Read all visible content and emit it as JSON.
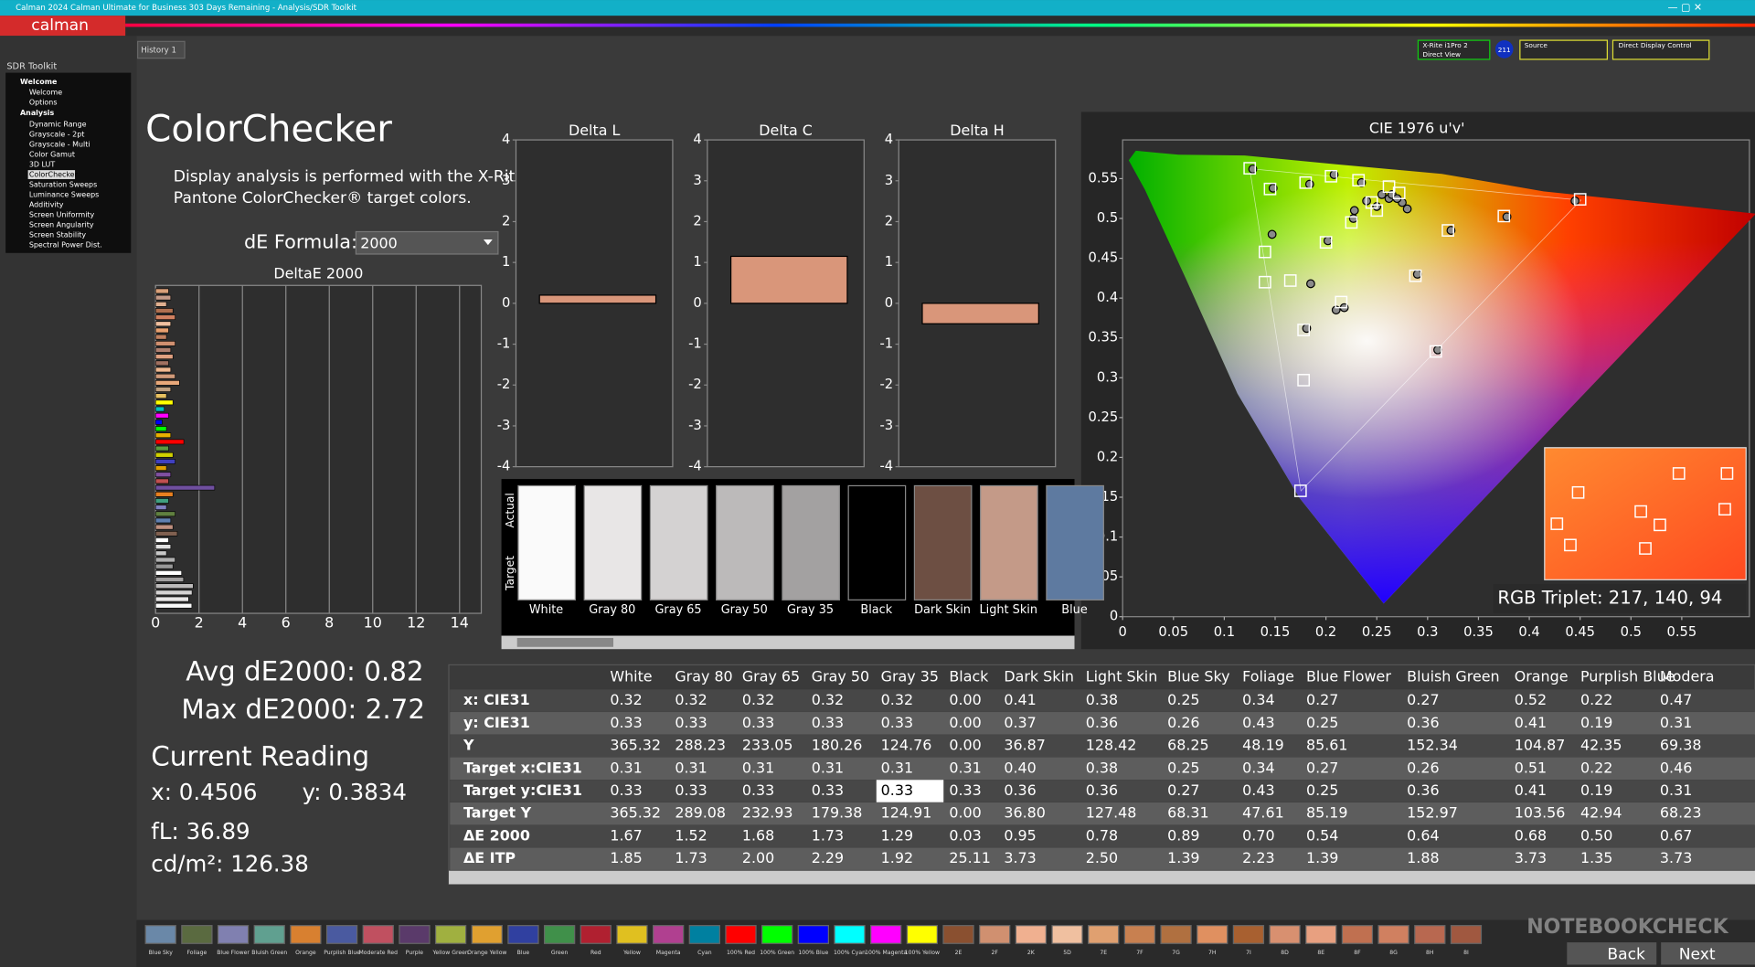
{
  "window": {
    "title": "Calman 2024 Calman Ultimate for Business 303 Days Remaining - Analysis/SDR Toolkit",
    "logo": "calman",
    "tab": "History 1",
    "toolbar": {
      "meter": "X-Rite i1Pro 2",
      "mode": "Direct View",
      "badge": "211",
      "source": "Source",
      "display": "Direct Display Control"
    }
  },
  "tree": {
    "title": "SDR Toolkit",
    "items": [
      "Welcome",
      "Welcome",
      "Options",
      "Analysis",
      "Dynamic Range",
      "Grayscale - 2pt",
      "Grayscale - Multi",
      "Color Gamut",
      "3D LUT",
      "ColorChecker",
      "Saturation Sweeps",
      "Luminance Sweeps",
      "Additivity",
      "Screen Uniformity",
      "Screen Angularity",
      "Screen Stability",
      "Spectral Power Dist."
    ]
  },
  "header": {
    "title": "ColorChecker",
    "desc1": "Display analysis is performed with the X-Rite/",
    "desc2": "Pantone ColorChecker® target colors.",
    "formula_label": "dE Formula:",
    "formula": "2000"
  },
  "chart_data": [
    {
      "type": "hbar",
      "title": "DeltaE 2000",
      "xlim": [
        0,
        15
      ],
      "xticks": [
        0,
        2,
        4,
        6,
        8,
        10,
        12,
        14
      ],
      "values": [
        0.6,
        0.7,
        0.5,
        0.8,
        0.9,
        0.7,
        0.6,
        0.5,
        0.9,
        0.7,
        0.8,
        0.6,
        0.7,
        0.9,
        1.1,
        0.7,
        0.5,
        0.8,
        0.4,
        0.6,
        0.3,
        0.5,
        0.7,
        1.3,
        0.6,
        0.8,
        0.9,
        0.5,
        0.7,
        0.6,
        2.72,
        0.8,
        0.6,
        0.5,
        0.9,
        0.7,
        0.8,
        1.0,
        0.6,
        0.7,
        0.5,
        0.9,
        0.8,
        1.2,
        1.29,
        1.73,
        1.68,
        1.52,
        1.67
      ],
      "colors": [
        "#d9a07a",
        "#c49a88",
        "#e0b090",
        "#b07050",
        "#d08060",
        "#f0c0a0",
        "#e8a070",
        "#c08060",
        "#d09070",
        "#b08070",
        "#e0a080",
        "#a07060",
        "#f0b890",
        "#d09a7a",
        "#e8a87a",
        "#c0a080",
        "#e8c060",
        "#ffff00",
        "#00c0c0",
        "#ff00ff",
        "#0000ff",
        "#00ff00",
        "#e8b000",
        "#ff0000",
        "#5a9a40",
        "#d0d000",
        "#4040c0",
        "#e0a000",
        "#8050a0",
        "#c05050",
        "#7050a0",
        "#e88020",
        "#40a080",
        "#8080c0",
        "#608040",
        "#6080b0",
        "#c09080",
        "#806050",
        "#ffffff",
        "#e0e0e0",
        "#c8c8c8",
        "#b0b0b0",
        "#989898",
        "#ffffff",
        "#a3a1a1",
        "#bcbaba",
        "#d4d2d2",
        "#e8e6e6",
        "#fafafa"
      ]
    },
    {
      "type": "bar",
      "title": "Delta L",
      "ylim": [
        -4,
        4
      ],
      "yticks": [
        -4,
        -3,
        -2,
        -1,
        0,
        1,
        2,
        3,
        4
      ],
      "value": 0.2,
      "color": "#d9967a"
    },
    {
      "type": "bar",
      "title": "Delta C",
      "ylim": [
        -4,
        4
      ],
      "yticks": [
        -4,
        -3,
        -2,
        -1,
        0,
        1,
        2,
        3,
        4
      ],
      "value": 1.15,
      "color": "#d9967a"
    },
    {
      "type": "bar",
      "title": "Delta H",
      "ylim": [
        -4,
        4
      ],
      "yticks": [
        -4,
        -3,
        -2,
        -1,
        0,
        1,
        2,
        3,
        4
      ],
      "value": -0.5,
      "color": "#d9967a"
    },
    {
      "type": "scatter",
      "title": "CIE 1976 u'v'",
      "xlim": [
        0,
        0.6
      ],
      "ylim": [
        0,
        0.6
      ],
      "xticks": [
        0,
        0.05,
        0.1,
        0.15,
        0.2,
        0.25,
        0.3,
        0.35,
        0.4,
        0.45,
        0.5,
        0.55
      ],
      "yticks": [
        0,
        0.05,
        0.1,
        0.15,
        0.2,
        0.25,
        0.3,
        0.35,
        0.4,
        0.45,
        0.5,
        0.55
      ],
      "targets": {
        "u": [
          0.125,
          0.145,
          0.18,
          0.205,
          0.232,
          0.262,
          0.272,
          0.45,
          0.375,
          0.32,
          0.14,
          0.2,
          0.225,
          0.215,
          0.288,
          0.178,
          0.178,
          0.175,
          0.165,
          0.14,
          0.308,
          0.245,
          0.25
        ],
        "v": [
          0.563,
          0.537,
          0.545,
          0.553,
          0.548,
          0.54,
          0.532,
          0.524,
          0.503,
          0.485,
          0.458,
          0.47,
          0.495,
          0.395,
          0.428,
          0.36,
          0.297,
          0.158,
          0.422,
          0.42,
          0.333,
          0.52,
          0.51
        ],
        "color": "#ffffff"
      },
      "measured": {
        "u": [
          0.128,
          0.148,
          0.184,
          0.208,
          0.235,
          0.262,
          0.265,
          0.275,
          0.25,
          0.255,
          0.24,
          0.228,
          0.445,
          0.378,
          0.323,
          0.147,
          0.202,
          0.227,
          0.218,
          0.29,
          0.181,
          0.185,
          0.21,
          0.31,
          0.27,
          0.28
        ],
        "v": [
          0.562,
          0.538,
          0.543,
          0.555,
          0.545,
          0.525,
          0.53,
          0.52,
          0.515,
          0.53,
          0.522,
          0.51,
          0.522,
          0.502,
          0.485,
          0.48,
          0.472,
          0.5,
          0.388,
          0.43,
          0.362,
          0.418,
          0.385,
          0.335,
          0.525,
          0.512
        ],
        "color": "#8a8a8a"
      },
      "readout": "RGB Triplet: 217, 140, 94"
    }
  ],
  "swatches": {
    "row_labels": [
      "Actual",
      "Target"
    ],
    "labels": [
      "White",
      "Gray 80",
      "Gray 65",
      "Gray 50",
      "Gray 35",
      "Black",
      "Dark Skin",
      "Light Skin",
      "Blue"
    ],
    "colors": [
      "#fafafa",
      "#e8e6e6",
      "#d4d2d2",
      "#bcbaba",
      "#a3a1a1",
      "#000000",
      "#6d4f43",
      "#c49a88",
      "#5e7aa0"
    ]
  },
  "stats": {
    "avg": "Avg dE2000: 0.82",
    "max": "Max dE2000: 2.72",
    "current": "Current Reading",
    "x": "x: 0.4506",
    "y": "y: 0.3834",
    "fl": "fL: 36.89",
    "cd": "cd/m²: 126.38"
  },
  "table": {
    "columns": [
      "White",
      "Gray 80",
      "Gray 65",
      "Gray 50",
      "Gray 35",
      "Black",
      "Dark Skin",
      "Light Skin",
      "Blue Sky",
      "Foliage",
      "Blue Flower",
      "Bluish Green",
      "Orange",
      "Purplish Blue",
      "Modera"
    ],
    "rows": [
      {
        "label": "x: CIE31",
        "cells": [
          "0.32",
          "0.32",
          "0.32",
          "0.32",
          "0.32",
          "0.00",
          "0.41",
          "0.38",
          "0.25",
          "0.34",
          "0.27",
          "0.27",
          "0.52",
          "0.22",
          "0.47"
        ]
      },
      {
        "label": "y: CIE31",
        "cells": [
          "0.33",
          "0.33",
          "0.33",
          "0.33",
          "0.33",
          "0.00",
          "0.37",
          "0.36",
          "0.26",
          "0.43",
          "0.25",
          "0.36",
          "0.41",
          "0.19",
          "0.31"
        ]
      },
      {
        "label": "Y",
        "cells": [
          "365.32",
          "288.23",
          "233.05",
          "180.26",
          "124.76",
          "0.00",
          "36.87",
          "128.42",
          "68.25",
          "48.19",
          "85.61",
          "152.34",
          "104.87",
          "42.35",
          "69.38"
        ]
      },
      {
        "label": "Target x:CIE31",
        "cells": [
          "0.31",
          "0.31",
          "0.31",
          "0.31",
          "0.31",
          "0.31",
          "0.40",
          "0.38",
          "0.25",
          "0.34",
          "0.27",
          "0.26",
          "0.51",
          "0.22",
          "0.46"
        ]
      },
      {
        "label": "Target y:CIE31",
        "cells": [
          "0.33",
          "0.33",
          "0.33",
          "0.33",
          "0.33",
          "0.33",
          "0.36",
          "0.36",
          "0.27",
          "0.43",
          "0.25",
          "0.36",
          "0.41",
          "0.19",
          "0.31"
        ]
      },
      {
        "label": "Target Y",
        "cells": [
          "365.32",
          "289.08",
          "232.93",
          "179.38",
          "124.91",
          "0.00",
          "36.80",
          "127.48",
          "68.31",
          "47.61",
          "85.19",
          "152.97",
          "103.56",
          "42.94",
          "68.23"
        ]
      },
      {
        "label": "ΔE 2000",
        "cells": [
          "1.67",
          "1.52",
          "1.68",
          "1.73",
          "1.29",
          "0.03",
          "0.95",
          "0.78",
          "0.89",
          "0.70",
          "0.54",
          "0.64",
          "0.68",
          "0.50",
          "0.67"
        ]
      },
      {
        "label": "ΔE ITP",
        "cells": [
          "1.85",
          "1.73",
          "2.00",
          "2.29",
          "1.92",
          "25.11",
          "3.73",
          "2.50",
          "1.39",
          "2.23",
          "1.39",
          "1.88",
          "3.73",
          "1.35",
          "3.73"
        ]
      }
    ]
  },
  "strip": {
    "labels": [
      "Blue Sky",
      "Foliage",
      "Blue Flower",
      "Bluish Green",
      "Orange",
      "Purplish Blue",
      "Moderate Red",
      "Purple",
      "Yellow Green",
      "Orange Yellow",
      "Blue",
      "Green",
      "Red",
      "Yellow",
      "Magenta",
      "Cyan",
      "100% Red",
      "100% Green",
      "100% Blue",
      "100% Cyan",
      "100% Magenta",
      "100% Yellow",
      "2E",
      "2F",
      "2K",
      "5D",
      "7E",
      "7F",
      "7G",
      "7H",
      "7I",
      "8D",
      "8E",
      "8F",
      "8G",
      "8H",
      "8I"
    ],
    "colors": [
      "#6a88a8",
      "#5a6a40",
      "#8080b0",
      "#60a090",
      "#d88030",
      "#4a5aa0",
      "#c05060",
      "#5a3a6a",
      "#a0b040",
      "#e0a030",
      "#3040a0",
      "#40904a",
      "#b02030",
      "#e0c020",
      "#b04090",
      "#0080a0",
      "#ff0000",
      "#00ff00",
      "#0000ff",
      "#00ffff",
      "#ff00ff",
      "#ffff00",
      "#8a5030",
      "#d09070",
      "#f0b090",
      "#f0c0a0",
      "#e0a070",
      "#c88050",
      "#b07040",
      "#e09060",
      "#a86030",
      "#d89070",
      "#e8a080",
      "#c07050",
      "#d08060",
      "#b86850",
      "#a05840"
    ],
    "back": "Back",
    "next": "Next"
  },
  "watermark": "NOTEBOOKCHECK"
}
